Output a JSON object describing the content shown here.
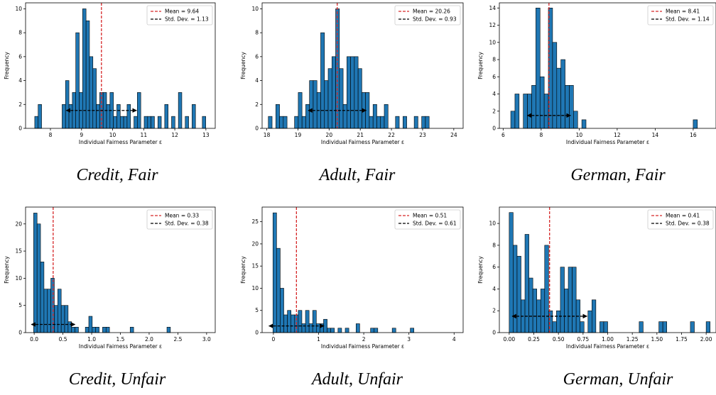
{
  "chart_data": [
    {
      "type": "bar",
      "caption": "Credit, Fair",
      "xlabel": "Individual Fairness Parameter ε",
      "ylabel": "Frequency",
      "xlim": [
        7.2,
        13.3
      ],
      "ylim": [
        0,
        10.5
      ],
      "xticks": [
        8,
        9,
        10,
        11,
        12,
        13
      ],
      "yticks": [
        0,
        2,
        4,
        6,
        8,
        10
      ],
      "bin_width": 0.11,
      "bins": [
        [
          7.55,
          1
        ],
        [
          7.66,
          2
        ],
        [
          8.43,
          2
        ],
        [
          8.54,
          4
        ],
        [
          8.65,
          2
        ],
        [
          8.76,
          3
        ],
        [
          8.87,
          8
        ],
        [
          8.98,
          3
        ],
        [
          9.09,
          10
        ],
        [
          9.2,
          9
        ],
        [
          9.31,
          6
        ],
        [
          9.42,
          5
        ],
        [
          9.53,
          2
        ],
        [
          9.64,
          3
        ],
        [
          9.75,
          3
        ],
        [
          9.86,
          2
        ],
        [
          9.97,
          3
        ],
        [
          10.08,
          1
        ],
        [
          10.19,
          2
        ],
        [
          10.3,
          1
        ],
        [
          10.41,
          1
        ],
        [
          10.52,
          2
        ],
        [
          10.74,
          1
        ],
        [
          10.85,
          3
        ],
        [
          11.07,
          1
        ],
        [
          11.18,
          1
        ],
        [
          11.29,
          1
        ],
        [
          11.51,
          1
        ],
        [
          11.73,
          2
        ],
        [
          11.95,
          1
        ],
        [
          12.17,
          3
        ],
        [
          12.39,
          1
        ],
        [
          12.61,
          2
        ],
        [
          12.94,
          1
        ]
      ],
      "mean_line": 9.64,
      "std_arrow": [
        8.51,
        10.77
      ],
      "std_arrow_y": 1.5,
      "legend": {
        "mean": "Mean = 9.64",
        "std": "Std. Dev. = 1.13"
      },
      "legend_position": "top-right"
    },
    {
      "type": "bar",
      "caption": "Adult, Fair",
      "xlabel": "Individual Fairness Parameter ε",
      "ylabel": "Frequency",
      "xlim": [
        17.85,
        24.3
      ],
      "ylim": [
        0,
        10.5
      ],
      "xticks": [
        18,
        19,
        20,
        21,
        22,
        23,
        24
      ],
      "yticks": [
        0,
        2,
        4,
        6,
        8,
        10
      ],
      "bin_width": 0.12,
      "bins": [
        [
          18.11,
          1
        ],
        [
          18.35,
          2
        ],
        [
          18.47,
          1
        ],
        [
          18.59,
          1
        ],
        [
          18.95,
          1
        ],
        [
          19.07,
          3
        ],
        [
          19.19,
          1
        ],
        [
          19.31,
          2
        ],
        [
          19.43,
          4
        ],
        [
          19.55,
          4
        ],
        [
          19.67,
          3
        ],
        [
          19.79,
          8
        ],
        [
          19.91,
          4
        ],
        [
          20.03,
          5
        ],
        [
          20.15,
          6
        ],
        [
          20.27,
          10
        ],
        [
          20.39,
          5
        ],
        [
          20.51,
          2
        ],
        [
          20.63,
          6
        ],
        [
          20.75,
          6
        ],
        [
          20.87,
          6
        ],
        [
          20.99,
          5
        ],
        [
          21.11,
          3
        ],
        [
          21.23,
          3
        ],
        [
          21.35,
          1
        ],
        [
          21.47,
          2
        ],
        [
          21.59,
          1
        ],
        [
          21.71,
          1
        ],
        [
          21.83,
          2
        ],
        [
          22.19,
          1
        ],
        [
          22.43,
          1
        ],
        [
          22.79,
          1
        ],
        [
          23.03,
          1
        ],
        [
          23.15,
          1
        ]
      ],
      "mean_line": 20.26,
      "std_arrow": [
        19.33,
        21.19
      ],
      "std_arrow_y": 1.5,
      "legend": {
        "mean": "Mean = 20.26",
        "std": "Std. Dev. = 0.93"
      },
      "legend_position": "top-right"
    },
    {
      "type": "bar",
      "caption": "German, Fair",
      "xlabel": "Individual Fairness Parameter ε",
      "ylabel": "Frequency",
      "xlim": [
        5.8,
        17.2
      ],
      "ylim": [
        0,
        14.6
      ],
      "xticks": [
        6,
        8,
        10,
        12,
        14,
        16
      ],
      "yticks": [
        0,
        2,
        4,
        6,
        8,
        10,
        12,
        14
      ],
      "bin_width": 0.22,
      "bins": [
        [
          6.51,
          2
        ],
        [
          6.73,
          4
        ],
        [
          7.17,
          4
        ],
        [
          7.39,
          4
        ],
        [
          7.61,
          5
        ],
        [
          7.83,
          14
        ],
        [
          8.05,
          6
        ],
        [
          8.27,
          4
        ],
        [
          8.49,
          14
        ],
        [
          8.71,
          10
        ],
        [
          8.93,
          7
        ],
        [
          9.15,
          8
        ],
        [
          9.37,
          5
        ],
        [
          9.59,
          5
        ],
        [
          9.81,
          2
        ],
        [
          10.25,
          1
        ],
        [
          16.11,
          1
        ]
      ],
      "mean_line": 8.41,
      "std_arrow": [
        7.27,
        9.55
      ],
      "std_arrow_y": 1.5,
      "legend": {
        "mean": "Mean = 8.41",
        "std": "Std. Dev. = 1.14"
      },
      "legend_position": "top-right"
    },
    {
      "type": "bar",
      "caption": "Credit, Unfair",
      "xlabel": "Individual Fairness Parameter ε",
      "ylabel": "Frequency",
      "xlim": [
        -0.15,
        3.15
      ],
      "ylim": [
        0,
        23.1
      ],
      "xticks": [
        0.0,
        0.5,
        1.0,
        1.5,
        2.0,
        2.5,
        3.0
      ],
      "xtick_labels": [
        "0.0",
        "0.5",
        "1.0",
        "1.5",
        "2.0",
        "2.5",
        "3.0"
      ],
      "yticks": [
        0,
        5,
        10,
        15,
        20
      ],
      "bin_width": 0.06,
      "bins": [
        [
          0.02,
          22
        ],
        [
          0.08,
          20
        ],
        [
          0.14,
          13
        ],
        [
          0.2,
          8
        ],
        [
          0.26,
          8
        ],
        [
          0.32,
          10
        ],
        [
          0.38,
          5
        ],
        [
          0.44,
          8
        ],
        [
          0.5,
          5
        ],
        [
          0.56,
          5
        ],
        [
          0.62,
          2
        ],
        [
          0.68,
          1
        ],
        [
          0.74,
          1
        ],
        [
          0.92,
          1
        ],
        [
          0.98,
          3
        ],
        [
          1.04,
          1
        ],
        [
          1.1,
          1
        ],
        [
          1.22,
          1
        ],
        [
          1.28,
          1
        ],
        [
          1.7,
          1
        ],
        [
          2.34,
          1
        ]
      ],
      "mean_line": 0.33,
      "std_arrow": [
        -0.05,
        0.71
      ],
      "std_arrow_y": 1.5,
      "legend": {
        "mean": "Mean = 0.33",
        "std": "Std. Dev. = 0.38"
      },
      "legend_position": "top-right"
    },
    {
      "type": "bar",
      "caption": "Adult, Unfair",
      "xlabel": "Individual Fairness Parameter ε",
      "ylabel": "Frequency",
      "xlim": [
        -0.25,
        4.2
      ],
      "ylim": [
        0,
        28.3
      ],
      "xticks": [
        0,
        1,
        2,
        3,
        4
      ],
      "yticks": [
        0,
        5,
        10,
        15,
        20,
        25
      ],
      "bin_width": 0.08,
      "bins": [
        [
          0.03,
          27
        ],
        [
          0.11,
          19
        ],
        [
          0.19,
          10
        ],
        [
          0.27,
          4
        ],
        [
          0.35,
          5
        ],
        [
          0.43,
          4
        ],
        [
          0.51,
          4
        ],
        [
          0.59,
          5
        ],
        [
          0.67,
          2
        ],
        [
          0.75,
          5
        ],
        [
          0.83,
          2
        ],
        [
          0.91,
          5
        ],
        [
          0.99,
          2
        ],
        [
          1.07,
          2
        ],
        [
          1.15,
          3
        ],
        [
          1.23,
          1
        ],
        [
          1.31,
          1
        ],
        [
          1.47,
          1
        ],
        [
          1.63,
          1
        ],
        [
          1.87,
          2
        ],
        [
          2.19,
          1
        ],
        [
          2.27,
          1
        ],
        [
          2.67,
          1
        ],
        [
          3.07,
          1
        ]
      ],
      "mean_line": 0.51,
      "std_arrow": [
        -0.1,
        1.12
      ],
      "std_arrow_y": 1.5,
      "legend": {
        "mean": "Mean = 0.51",
        "std": "Std. Dev. = 0.61"
      },
      "legend_position": "top-right"
    },
    {
      "type": "bar",
      "caption": "German, Unfair",
      "xlabel": "Individual Fairness Parameter ε",
      "ylabel": "Frequency",
      "xlim": [
        -0.1,
        2.1
      ],
      "ylim": [
        0,
        11.5
      ],
      "xticks": [
        0.0,
        0.25,
        0.5,
        0.75,
        1.0,
        1.25,
        1.5,
        1.75,
        2.0
      ],
      "xtick_labels": [
        "0.00",
        "0.25",
        "0.50",
        "0.75",
        "1.00",
        "1.25",
        "1.50",
        "1.75",
        "2.00"
      ],
      "yticks": [
        0,
        2,
        4,
        6,
        8,
        10
      ],
      "bin_width": 0.04,
      "bins": [
        [
          0.02,
          11
        ],
        [
          0.06,
          8
        ],
        [
          0.1,
          7
        ],
        [
          0.14,
          3
        ],
        [
          0.18,
          9
        ],
        [
          0.22,
          5
        ],
        [
          0.26,
          4
        ],
        [
          0.3,
          3
        ],
        [
          0.34,
          4
        ],
        [
          0.38,
          8
        ],
        [
          0.42,
          2
        ],
        [
          0.46,
          1
        ],
        [
          0.5,
          2
        ],
        [
          0.54,
          6
        ],
        [
          0.58,
          4
        ],
        [
          0.62,
          6
        ],
        [
          0.66,
          6
        ],
        [
          0.7,
          3
        ],
        [
          0.74,
          1
        ],
        [
          0.82,
          2
        ],
        [
          0.86,
          3
        ],
        [
          0.94,
          1
        ],
        [
          0.98,
          1
        ],
        [
          1.34,
          1
        ],
        [
          1.54,
          1
        ],
        [
          1.58,
          1
        ],
        [
          1.86,
          1
        ],
        [
          2.02,
          1
        ]
      ],
      "mean_line": 0.41,
      "std_arrow": [
        0.03,
        0.79
      ],
      "std_arrow_y": 1.5,
      "legend": {
        "mean": "Mean = 0.41",
        "std": "Std. Dev. = 0.38"
      },
      "legend_position": "top-right"
    }
  ],
  "colors": {
    "bar": "#1f77b4",
    "mean_line": "#d62728",
    "std_line": "#000000"
  }
}
